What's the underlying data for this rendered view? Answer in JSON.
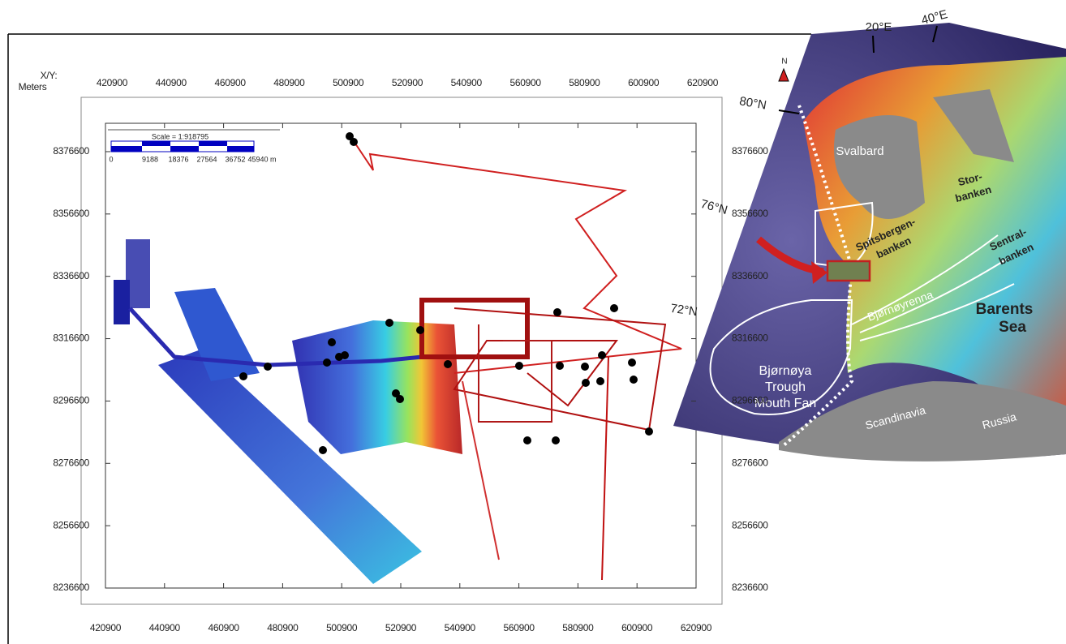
{
  "map": {
    "axis_label": [
      "X/Y:",
      "Meters"
    ],
    "xlim": [
      420900,
      620900
    ],
    "ylim": [
      8236600,
      8385700
    ],
    "xticks": [
      420900,
      440900,
      460900,
      480900,
      500900,
      520900,
      540900,
      560900,
      580900,
      600900,
      620900
    ],
    "yticks": [
      8376600,
      8356600,
      8336600,
      8316600,
      8296600,
      8276600,
      8256600,
      8236600
    ],
    "scale_bar": {
      "title": "Scale = 1:918795",
      "labels": [
        "0",
        "9188",
        "18376",
        "27564",
        "36752",
        "45940 m"
      ]
    }
  },
  "inset": {
    "north": "N",
    "longitudes": [
      "20°E",
      "40°E"
    ],
    "latitudes": [
      "80°N",
      "76°N",
      "72°N"
    ],
    "places": {
      "svalbard": "Svalbard",
      "storbanken": [
        "Stor-",
        "banken"
      ],
      "spitsbergenbanken": [
        "Spitsbergen-",
        "banken"
      ],
      "sentralbanken": [
        "Sentral-",
        "banken"
      ],
      "bjornoyrenna": "Bjørnøyrenna",
      "barents_sea": [
        "Barents",
        "Sea"
      ],
      "trough_mouth_fan": [
        "Bjørnøya",
        "Trough",
        "Mouth Fan"
      ],
      "scandinavia": "Scandinavia",
      "russia": "Russia"
    }
  }
}
